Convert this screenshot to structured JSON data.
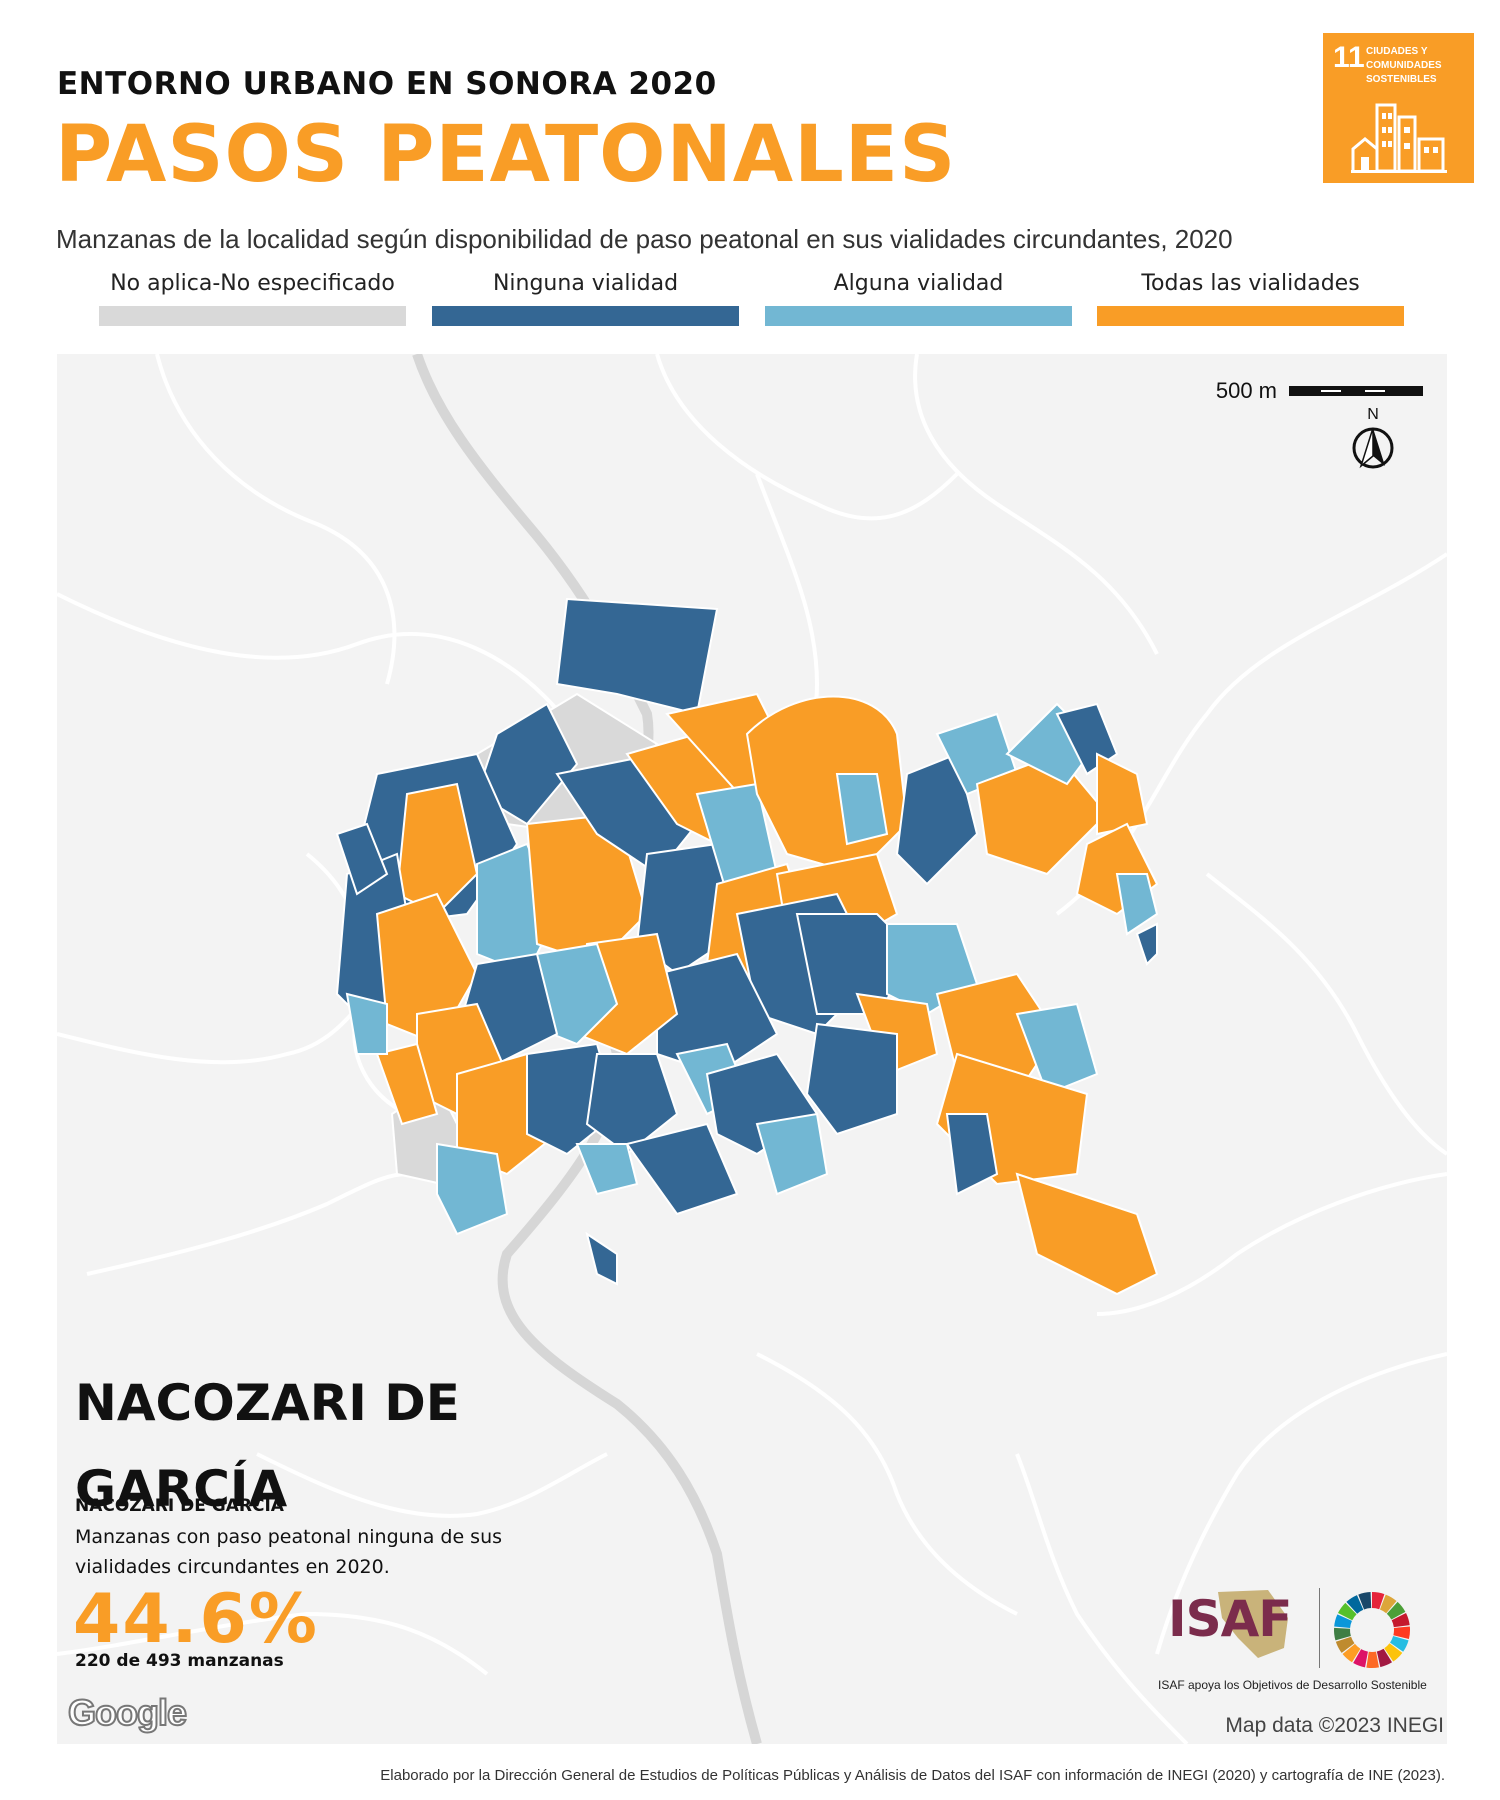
{
  "header": {
    "kicker": "ENTORNO URBANO EN SONORA 2020",
    "title": "PASOS PEATONALES",
    "subtitle": "Manzanas de la localidad según disponibilidad de paso peatonal en sus vialidades circundantes, 2020"
  },
  "sdg_badge": {
    "number": "11",
    "text": "CIUDADES Y COMUNIDADES SOSTENIBLES",
    "color": "#f99d26",
    "icon": "city-buildings-icon"
  },
  "legend": [
    {
      "label": "No aplica-No especificado",
      "color": "#d9d9d9"
    },
    {
      "label": "Ninguna vialidad",
      "color": "#346794"
    },
    {
      "label": "Alguna vialidad",
      "color": "#72b7d3"
    },
    {
      "label": "Todas las vialidades",
      "color": "#f99d26"
    }
  ],
  "map": {
    "background_color": "#f3f3f3",
    "road_color": "#ffffff",
    "highway_color": "#d6d6d6",
    "scale_label": "500 m",
    "north_label": "N",
    "google_label": "Google",
    "attribution": "Map data ©2023 INEGI"
  },
  "place": {
    "title": "NACOZARI DE GARCÍA",
    "subtitle": "NACOZARI DE GARCÍA",
    "description": "Manzanas con paso peatonal ninguna de sus vialidades circundantes en 2020.",
    "value": "44.6%",
    "count": "220 de 493 manzanas",
    "accent": "#f99d26"
  },
  "logos": {
    "isaf_label": "ISAF",
    "isaf_color": "#7b2c4c",
    "caption": "ISAF apoya los Objetivos de Desarrollo Sostenible",
    "sdg_colors": [
      "#e5243b",
      "#dda63a",
      "#4c9f38",
      "#c5192d",
      "#ff3a21",
      "#26bde2",
      "#fcc30b",
      "#a21942",
      "#fd6925",
      "#dd1367",
      "#fd9d24",
      "#bf8b2e",
      "#3f7e44",
      "#0a97d9",
      "#56c02b",
      "#00689d",
      "#19486a"
    ]
  },
  "footer": "Elaborado por la Dirección General de Estudios de Políticas Públicas y Análisis de Datos del ISAF con información de INEGI (2020) y cartografía de INE (2023)."
}
